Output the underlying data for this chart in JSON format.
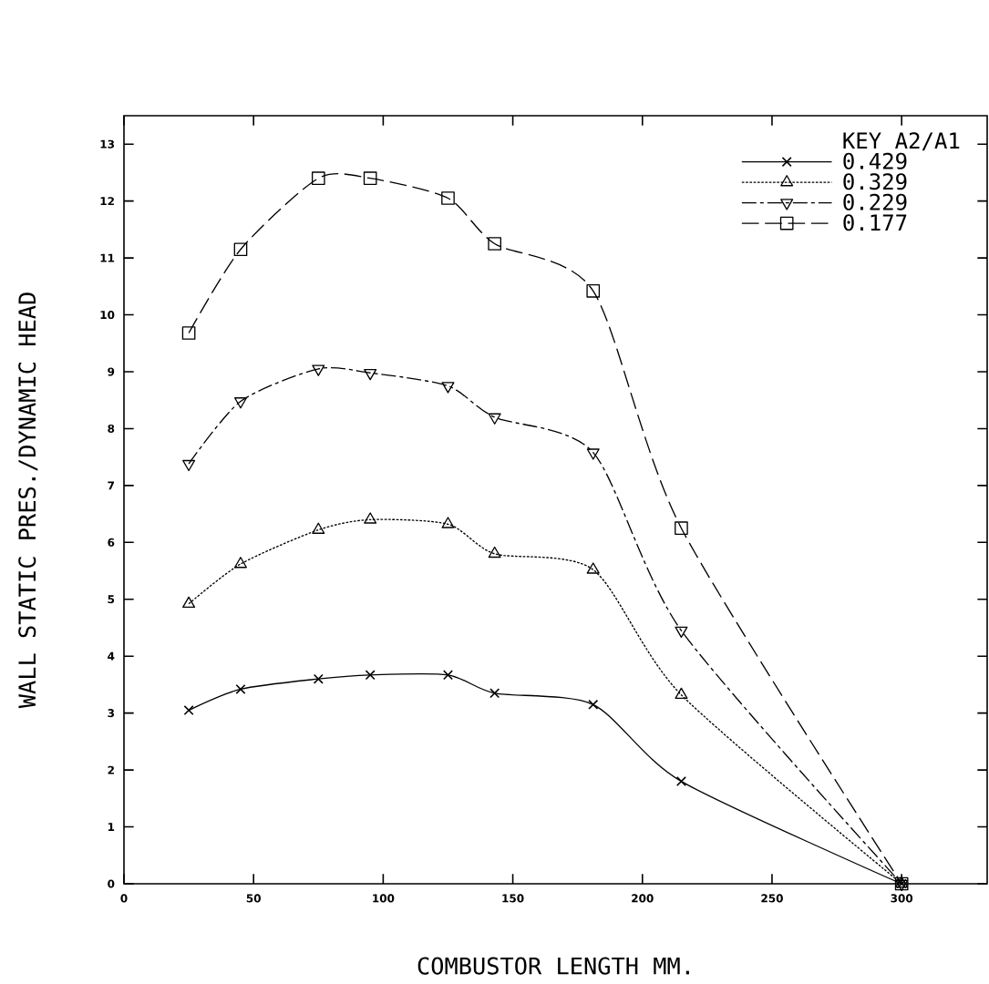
{
  "chart_data": {
    "type": "line",
    "xlabel": "COMBUSTOR LENGTH MM.",
    "ylabel": "WALL STATIC PRES./DYNAMIC HEAD",
    "legend_title": "KEY   A2/A1",
    "x": [
      25,
      45,
      75,
      95,
      125,
      143,
      181,
      215,
      300
    ],
    "series": [
      {
        "name": "0.429",
        "color": "#000000",
        "marker": "cross",
        "line_style": "solid",
        "values": [
          3.05,
          3.42,
          3.6,
          3.67,
          3.67,
          3.35,
          3.15,
          1.8,
          0
        ]
      },
      {
        "name": "0.329",
        "color": "#000000",
        "marker": "triangle",
        "line_style": "dotted",
        "values": [
          4.92,
          5.62,
          6.22,
          6.4,
          6.32,
          5.8,
          5.52,
          3.32,
          0
        ]
      },
      {
        "name": "0.229",
        "color": "#000000",
        "marker": "triangle-down",
        "line_style": "dashdot",
        "values": [
          7.38,
          8.48,
          9.05,
          8.98,
          8.75,
          8.2,
          7.58,
          4.45,
          0
        ]
      },
      {
        "name": "0.177",
        "color": "#000000",
        "marker": "square",
        "line_style": "dashed",
        "values": [
          9.68,
          11.15,
          12.4,
          12.4,
          12.05,
          11.25,
          10.42,
          6.25,
          0
        ]
      }
    ],
    "xlim": [
      0,
      333
    ],
    "ylim": [
      0,
      13.5
    ],
    "xticks": [
      0,
      50,
      100,
      150,
      200,
      250,
      300
    ],
    "yticks": [
      0,
      1,
      2,
      3,
      4,
      5,
      6,
      7,
      8,
      9,
      10,
      11,
      12,
      13
    ],
    "grid": false,
    "legend": "top right"
  }
}
